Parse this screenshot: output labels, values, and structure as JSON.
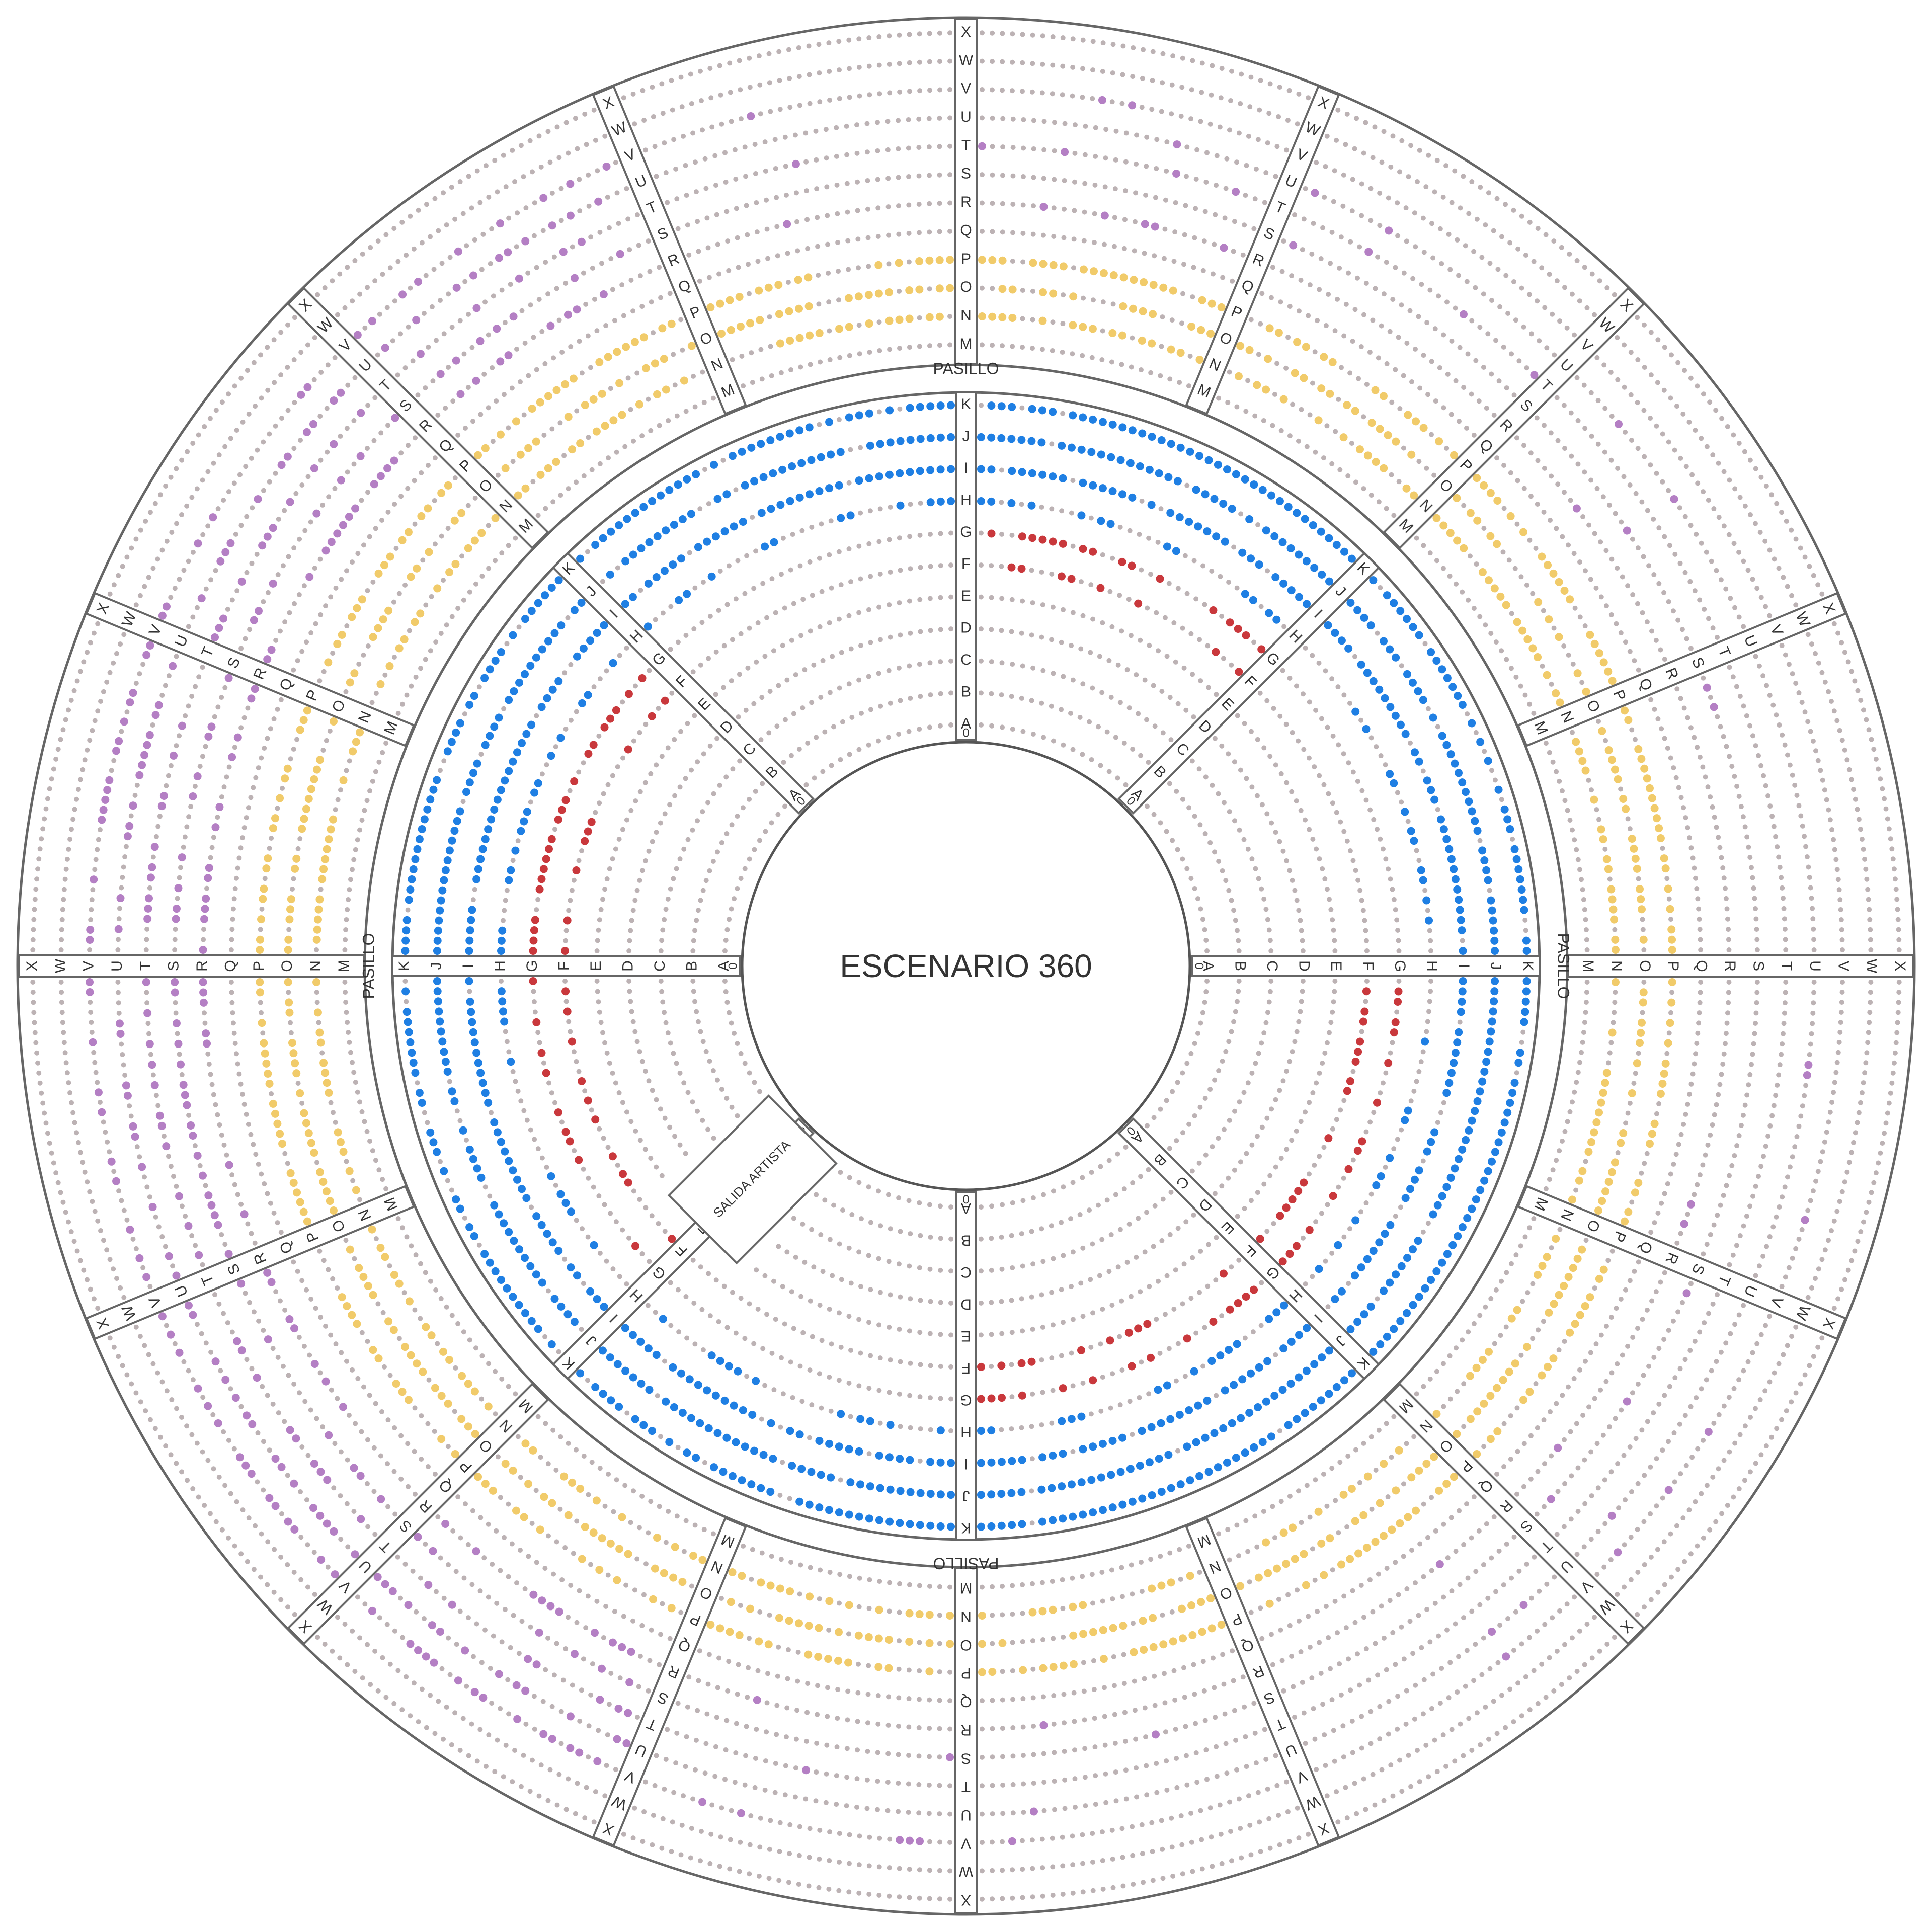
{
  "stage": "ESCENARIO 360",
  "aisle_label": "PASILLO",
  "exit_label": "SALIDA ARTISTA",
  "aisle_start": "0",
  "inner_rows": [
    "A",
    "B",
    "C",
    "D",
    "E",
    "F",
    "G",
    "H",
    "I",
    "J",
    "K"
  ],
  "outer_rows": [
    "M",
    "N",
    "O",
    "P",
    "Q",
    "R",
    "S",
    "T",
    "U",
    "V",
    "W",
    "X"
  ]
}
